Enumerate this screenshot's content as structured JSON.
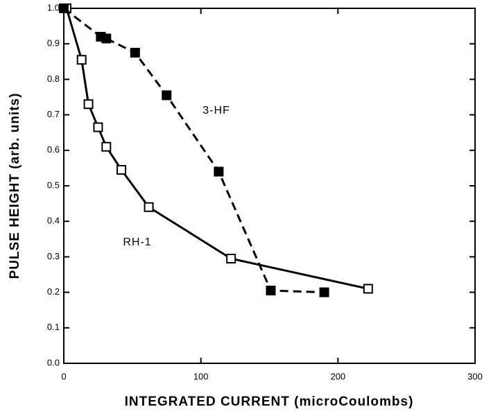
{
  "chart_data": {
    "type": "line",
    "x_label": "INTEGRATED CURRENT (microCoulombs)",
    "y_label": "PULSE HEIGHT (arb. units)",
    "xlim": [
      0,
      300
    ],
    "xticks": [
      0,
      100,
      200,
      300
    ],
    "ylim": [
      0,
      1
    ],
    "yticks": [
      {
        "value": 0,
        "label": "0.0"
      },
      0.1,
      0.2,
      0.3,
      0.4,
      0.5,
      0.6,
      0.7,
      0.8,
      0.9,
      {
        "value": 1,
        "label": "1.0"
      }
    ],
    "annotations": [
      "3-HF",
      "RH-1"
    ],
    "series": [
      {
        "name": "RH-1",
        "color": "#000000",
        "marker": "open",
        "dashed": false,
        "x": [
          2,
          13,
          18,
          25,
          31,
          42,
          62,
          122,
          222
        ],
        "values": [
          1.0,
          0.855,
          0.73,
          0.665,
          0.61,
          0.545,
          0.44,
          0.295,
          0.21
        ]
      },
      {
        "name": "3-HF",
        "color": "#000000",
        "marker": "filled",
        "dashed": true,
        "x": [
          0,
          27,
          31,
          52,
          75,
          113,
          151,
          190
        ],
        "values": [
          1.0,
          0.92,
          0.915,
          0.875,
          0.755,
          0.54,
          0.205,
          0.2
        ]
      }
    ]
  }
}
